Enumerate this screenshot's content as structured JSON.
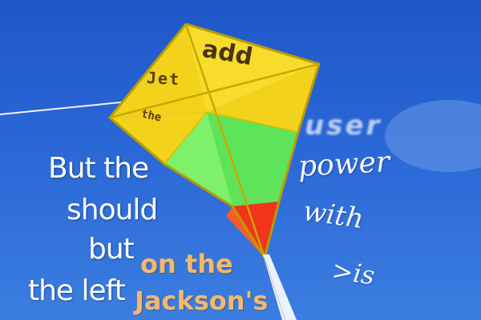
{
  "image": {
    "description_words": {
      "kite_add": "add",
      "kite_jet": "Jet",
      "kite_the": "the",
      "right_user": "user",
      "right_power": "power",
      "right_with": "with",
      "right_is": ">is",
      "left_line1": "But the",
      "left_line2": "should",
      "left_line3": "but",
      "left_line4": "the left",
      "orange_line1": "on the",
      "orange_line2": "Jackson's"
    },
    "colors": {
      "sky": "#2a67d6",
      "kite_yellow": "#f2d21a",
      "kite_green": "#5fe35a",
      "kite_red": "#f2341c",
      "frame": "#c8b000"
    }
  }
}
